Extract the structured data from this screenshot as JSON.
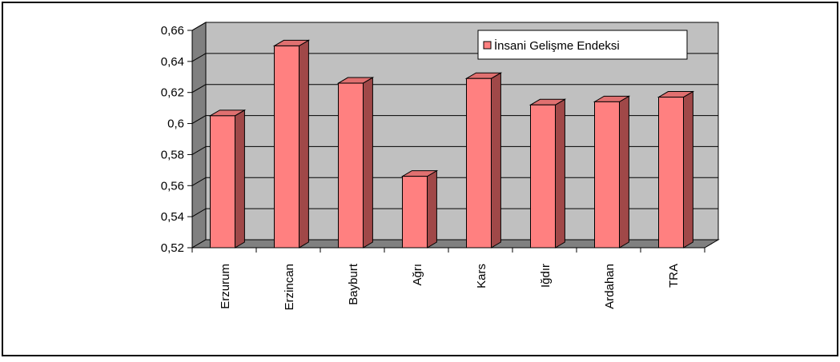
{
  "chart_data": {
    "type": "bar",
    "title": "",
    "xlabel": "",
    "ylabel": "",
    "categories": [
      "Erzurum",
      "Erzincan",
      "Bayburt",
      "Ağrı",
      "Kars",
      "Iğdır",
      "Ardahan",
      "TRA"
    ],
    "series": [
      {
        "name": "İnsani Gelişme Endeksi",
        "values": [
          0.605,
          0.65,
          0.626,
          0.566,
          0.629,
          0.612,
          0.614,
          0.617
        ]
      }
    ],
    "ylim": [
      0.52,
      0.66
    ],
    "yticks": [
      "0,52",
      "0,54",
      "0,56",
      "0,58",
      "0,6",
      "0,62",
      "0,64",
      "0,66"
    ],
    "grid": true,
    "legend_position": "top-right",
    "colors": {
      "bar_front": "#FF8080",
      "bar_top": "#E07070",
      "bar_side": "#A04848",
      "plot_back": "#C0C0C0",
      "floor": "#808080"
    }
  }
}
